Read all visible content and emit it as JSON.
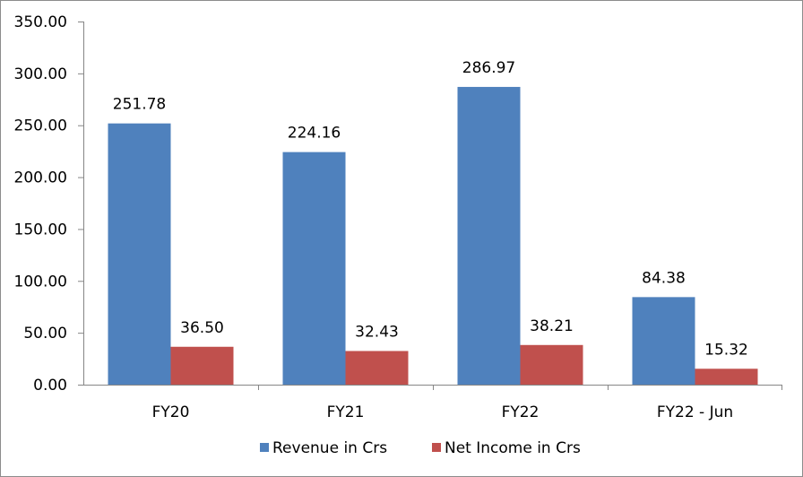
{
  "chart_data": {
    "type": "bar",
    "categories": [
      "FY20",
      "FY21",
      "FY22",
      "FY22 - Jun"
    ],
    "series": [
      {
        "name": "Revenue in Crs",
        "values": [
          251.78,
          224.16,
          286.97,
          84.38
        ],
        "labels": [
          "251.78",
          "224.16",
          "286.97",
          "84.38"
        ],
        "color": "#4F81BD"
      },
      {
        "name": "Net Income in Crs",
        "values": [
          36.5,
          32.43,
          38.21,
          15.32
        ],
        "labels": [
          "36.50",
          "32.43",
          "38.21",
          "15.32"
        ],
        "color": "#C0504D"
      }
    ],
    "yticks": [
      "0.00",
      "50.00",
      "100.00",
      "150.00",
      "200.00",
      "250.00",
      "300.00",
      "350.00"
    ],
    "ylim": [
      0,
      350
    ],
    "grid": false,
    "legend": "bottom"
  }
}
